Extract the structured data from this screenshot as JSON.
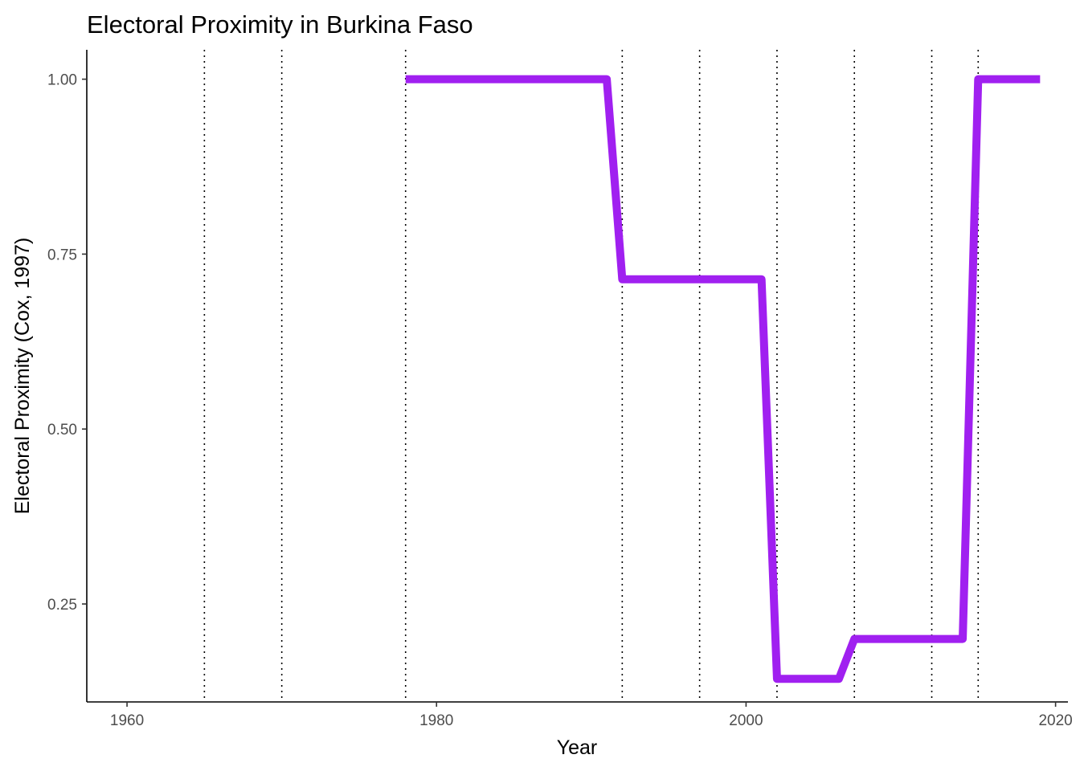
{
  "chart_data": {
    "type": "line",
    "title": "Electoral Proximity in Burkina Faso",
    "xlabel": "Year",
    "ylabel": "Electoral Proximity (Cox, 1997)",
    "xlim": [
      1957.4,
      2020.8
    ],
    "ylim": [
      0.11,
      1.042
    ],
    "x_ticks": [
      1960,
      1980,
      2000,
      2020
    ],
    "x_tick_labels": [
      "1960",
      "1980",
      "2000",
      "2020"
    ],
    "y_ticks": [
      0.25,
      0.5,
      0.75,
      1.0
    ],
    "y_tick_labels": [
      "0.25",
      "0.50",
      "0.75",
      "1.00"
    ],
    "grid": false,
    "legend": "none",
    "election_years": [
      1965,
      1970,
      1978,
      1992,
      1997,
      2002,
      2007,
      2012,
      2015
    ],
    "series": [
      {
        "color": "#a020f0",
        "x": [
          1978,
          1979,
          1980,
          1981,
          1982,
          1983,
          1984,
          1985,
          1986,
          1987,
          1988,
          1989,
          1990,
          1991,
          1992,
          1993,
          1994,
          1995,
          1996,
          1997,
          1998,
          1999,
          2000,
          2001,
          2002,
          2003,
          2004,
          2005,
          2006,
          2007,
          2008,
          2009,
          2010,
          2011,
          2012,
          2013,
          2014,
          2015,
          2016,
          2017,
          2018,
          2019
        ],
        "values": [
          1.0,
          1.0,
          1.0,
          1.0,
          1.0,
          1.0,
          1.0,
          1.0,
          1.0,
          1.0,
          1.0,
          1.0,
          1.0,
          1.0,
          0.714,
          0.714,
          0.714,
          0.714,
          0.714,
          0.714,
          0.714,
          0.714,
          0.714,
          0.714,
          0.143,
          0.143,
          0.143,
          0.143,
          0.143,
          0.2,
          0.2,
          0.2,
          0.2,
          0.2,
          0.2,
          0.2,
          0.2,
          1.0,
          1.0,
          1.0,
          1.0,
          1.0
        ]
      }
    ]
  }
}
